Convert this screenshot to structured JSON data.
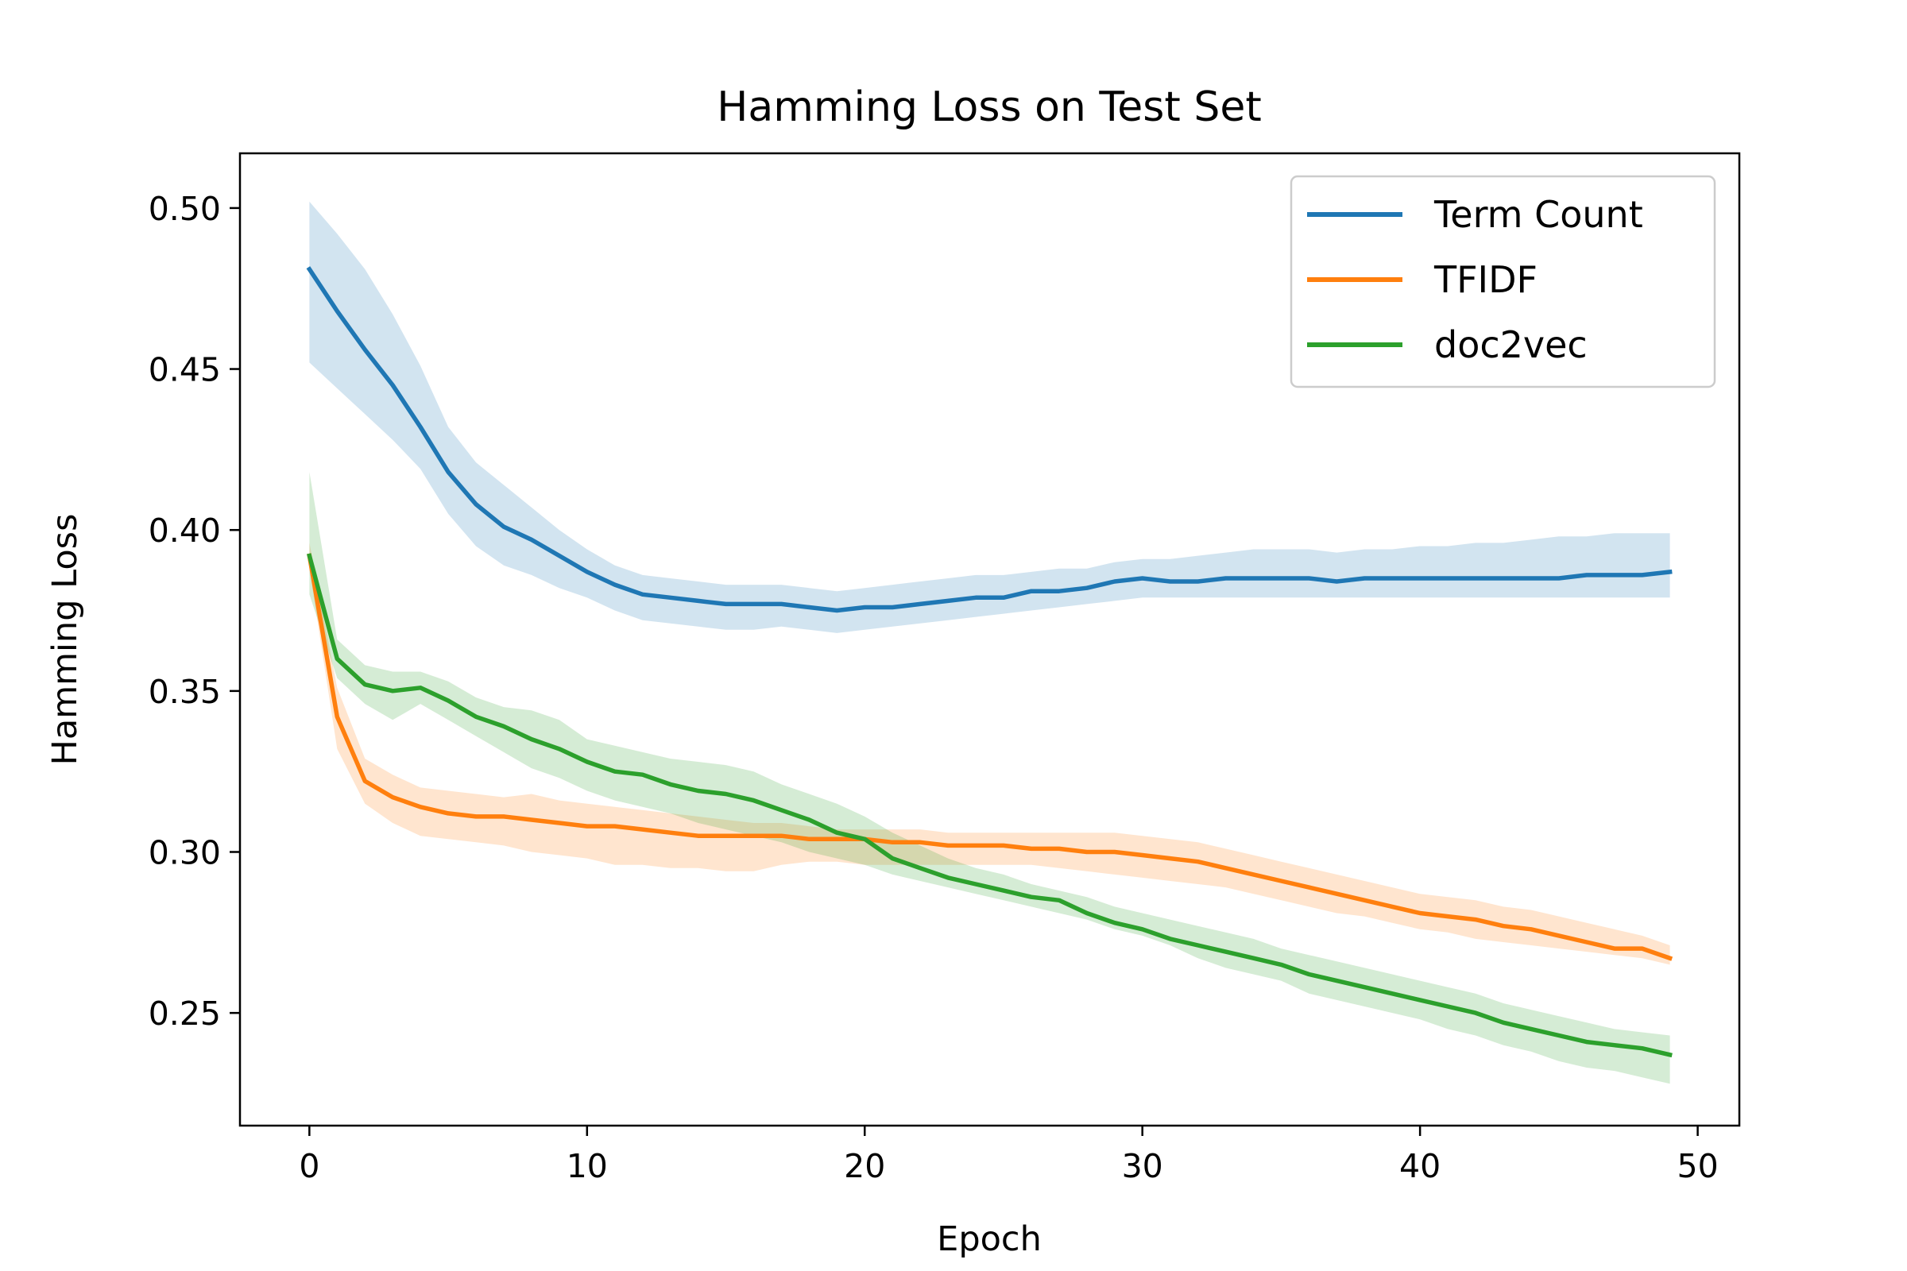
{
  "chart_data": {
    "type": "line",
    "title": "Hamming Loss on Test Set",
    "xlabel": "Epoch",
    "ylabel": "Hamming Loss",
    "xlim": [
      -2.5,
      51.5
    ],
    "ylim": [
      0.215,
      0.517
    ],
    "xticks": [
      0,
      10,
      20,
      30,
      40,
      50
    ],
    "xtick_labels": [
      "0",
      "10",
      "20",
      "30",
      "40",
      "50"
    ],
    "yticks": [
      0.25,
      0.3,
      0.35,
      0.4,
      0.45,
      0.5
    ],
    "ytick_labels": [
      "0.25",
      "0.30",
      "0.35",
      "0.40",
      "0.45",
      "0.50"
    ],
    "grid": false,
    "legend_position": "top-right",
    "x": [
      0,
      1,
      2,
      3,
      4,
      5,
      6,
      7,
      8,
      9,
      10,
      11,
      12,
      13,
      14,
      15,
      16,
      17,
      18,
      19,
      20,
      21,
      22,
      23,
      24,
      25,
      26,
      27,
      28,
      29,
      30,
      31,
      32,
      33,
      34,
      35,
      36,
      37,
      38,
      39,
      40,
      41,
      42,
      43,
      44,
      45,
      46,
      47,
      48,
      49
    ],
    "series": [
      {
        "name": "Term Count",
        "color": "#1f77b4",
        "values": [
          0.481,
          0.468,
          0.456,
          0.445,
          0.432,
          0.418,
          0.408,
          0.401,
          0.397,
          0.392,
          0.387,
          0.383,
          0.38,
          0.379,
          0.378,
          0.377,
          0.377,
          0.377,
          0.376,
          0.375,
          0.376,
          0.376,
          0.377,
          0.378,
          0.379,
          0.379,
          0.381,
          0.381,
          0.382,
          0.384,
          0.385,
          0.384,
          0.384,
          0.385,
          0.385,
          0.385,
          0.385,
          0.384,
          0.385,
          0.385,
          0.385,
          0.385,
          0.385,
          0.385,
          0.385,
          0.385,
          0.386,
          0.386,
          0.386,
          0.387
        ],
        "lower": [
          0.452,
          0.444,
          0.436,
          0.428,
          0.419,
          0.405,
          0.395,
          0.389,
          0.386,
          0.382,
          0.379,
          0.375,
          0.372,
          0.371,
          0.37,
          0.369,
          0.369,
          0.37,
          0.369,
          0.368,
          0.369,
          0.37,
          0.371,
          0.372,
          0.373,
          0.374,
          0.375,
          0.376,
          0.377,
          0.378,
          0.379,
          0.379,
          0.379,
          0.379,
          0.379,
          0.379,
          0.379,
          0.379,
          0.379,
          0.379,
          0.379,
          0.379,
          0.379,
          0.379,
          0.379,
          0.379,
          0.379,
          0.379,
          0.379,
          0.379
        ],
        "upper": [
          0.502,
          0.492,
          0.481,
          0.467,
          0.451,
          0.432,
          0.421,
          0.414,
          0.407,
          0.4,
          0.394,
          0.389,
          0.386,
          0.385,
          0.384,
          0.383,
          0.383,
          0.383,
          0.382,
          0.381,
          0.382,
          0.383,
          0.384,
          0.385,
          0.386,
          0.386,
          0.387,
          0.388,
          0.388,
          0.39,
          0.391,
          0.391,
          0.392,
          0.393,
          0.394,
          0.394,
          0.394,
          0.393,
          0.394,
          0.394,
          0.395,
          0.395,
          0.396,
          0.396,
          0.397,
          0.398,
          0.398,
          0.399,
          0.399,
          0.399
        ]
      },
      {
        "name": "TFIDF",
        "color": "#ff7f0e",
        "values": [
          0.392,
          0.342,
          0.322,
          0.317,
          0.314,
          0.312,
          0.311,
          0.311,
          0.31,
          0.309,
          0.308,
          0.308,
          0.307,
          0.306,
          0.305,
          0.305,
          0.305,
          0.305,
          0.304,
          0.304,
          0.304,
          0.303,
          0.303,
          0.302,
          0.302,
          0.302,
          0.301,
          0.301,
          0.3,
          0.3,
          0.299,
          0.298,
          0.297,
          0.295,
          0.293,
          0.291,
          0.289,
          0.287,
          0.285,
          0.283,
          0.281,
          0.28,
          0.279,
          0.277,
          0.276,
          0.274,
          0.272,
          0.27,
          0.27,
          0.267
        ],
        "lower": [
          0.388,
          0.332,
          0.315,
          0.309,
          0.305,
          0.304,
          0.303,
          0.302,
          0.3,
          0.299,
          0.298,
          0.296,
          0.296,
          0.295,
          0.295,
          0.294,
          0.294,
          0.296,
          0.297,
          0.297,
          0.296,
          0.296,
          0.296,
          0.296,
          0.296,
          0.296,
          0.296,
          0.295,
          0.294,
          0.293,
          0.292,
          0.291,
          0.29,
          0.289,
          0.287,
          0.285,
          0.283,
          0.281,
          0.28,
          0.278,
          0.276,
          0.275,
          0.273,
          0.272,
          0.271,
          0.27,
          0.269,
          0.268,
          0.267,
          0.265
        ],
        "upper": [
          0.396,
          0.351,
          0.329,
          0.324,
          0.32,
          0.319,
          0.318,
          0.317,
          0.318,
          0.316,
          0.315,
          0.314,
          0.313,
          0.312,
          0.311,
          0.31,
          0.309,
          0.309,
          0.308,
          0.307,
          0.307,
          0.307,
          0.307,
          0.306,
          0.306,
          0.306,
          0.306,
          0.306,
          0.306,
          0.306,
          0.305,
          0.304,
          0.303,
          0.301,
          0.299,
          0.297,
          0.295,
          0.293,
          0.291,
          0.289,
          0.287,
          0.286,
          0.285,
          0.283,
          0.282,
          0.28,
          0.278,
          0.276,
          0.274,
          0.271
        ]
      },
      {
        "name": "doc2vec",
        "color": "#2ca02c",
        "values": [
          0.392,
          0.36,
          0.352,
          0.35,
          0.351,
          0.347,
          0.342,
          0.339,
          0.335,
          0.332,
          0.328,
          0.325,
          0.324,
          0.321,
          0.319,
          0.318,
          0.316,
          0.313,
          0.31,
          0.306,
          0.304,
          0.298,
          0.295,
          0.292,
          0.29,
          0.288,
          0.286,
          0.285,
          0.281,
          0.278,
          0.276,
          0.273,
          0.271,
          0.269,
          0.267,
          0.265,
          0.262,
          0.26,
          0.258,
          0.256,
          0.254,
          0.252,
          0.25,
          0.247,
          0.245,
          0.243,
          0.241,
          0.24,
          0.239,
          0.237
        ],
        "lower": [
          0.38,
          0.354,
          0.346,
          0.341,
          0.346,
          0.341,
          0.336,
          0.331,
          0.326,
          0.323,
          0.319,
          0.316,
          0.314,
          0.312,
          0.309,
          0.307,
          0.305,
          0.303,
          0.3,
          0.298,
          0.296,
          0.293,
          0.291,
          0.289,
          0.287,
          0.285,
          0.283,
          0.281,
          0.279,
          0.276,
          0.274,
          0.271,
          0.267,
          0.264,
          0.262,
          0.26,
          0.256,
          0.254,
          0.252,
          0.25,
          0.248,
          0.245,
          0.243,
          0.24,
          0.238,
          0.235,
          0.233,
          0.232,
          0.23,
          0.228
        ],
        "upper": [
          0.418,
          0.366,
          0.358,
          0.356,
          0.356,
          0.353,
          0.348,
          0.345,
          0.344,
          0.341,
          0.335,
          0.333,
          0.331,
          0.329,
          0.328,
          0.327,
          0.325,
          0.321,
          0.318,
          0.315,
          0.311,
          0.306,
          0.302,
          0.298,
          0.295,
          0.293,
          0.29,
          0.288,
          0.286,
          0.283,
          0.281,
          0.279,
          0.277,
          0.275,
          0.273,
          0.27,
          0.268,
          0.266,
          0.264,
          0.262,
          0.26,
          0.258,
          0.256,
          0.253,
          0.251,
          0.249,
          0.247,
          0.245,
          0.244,
          0.243
        ]
      }
    ]
  }
}
